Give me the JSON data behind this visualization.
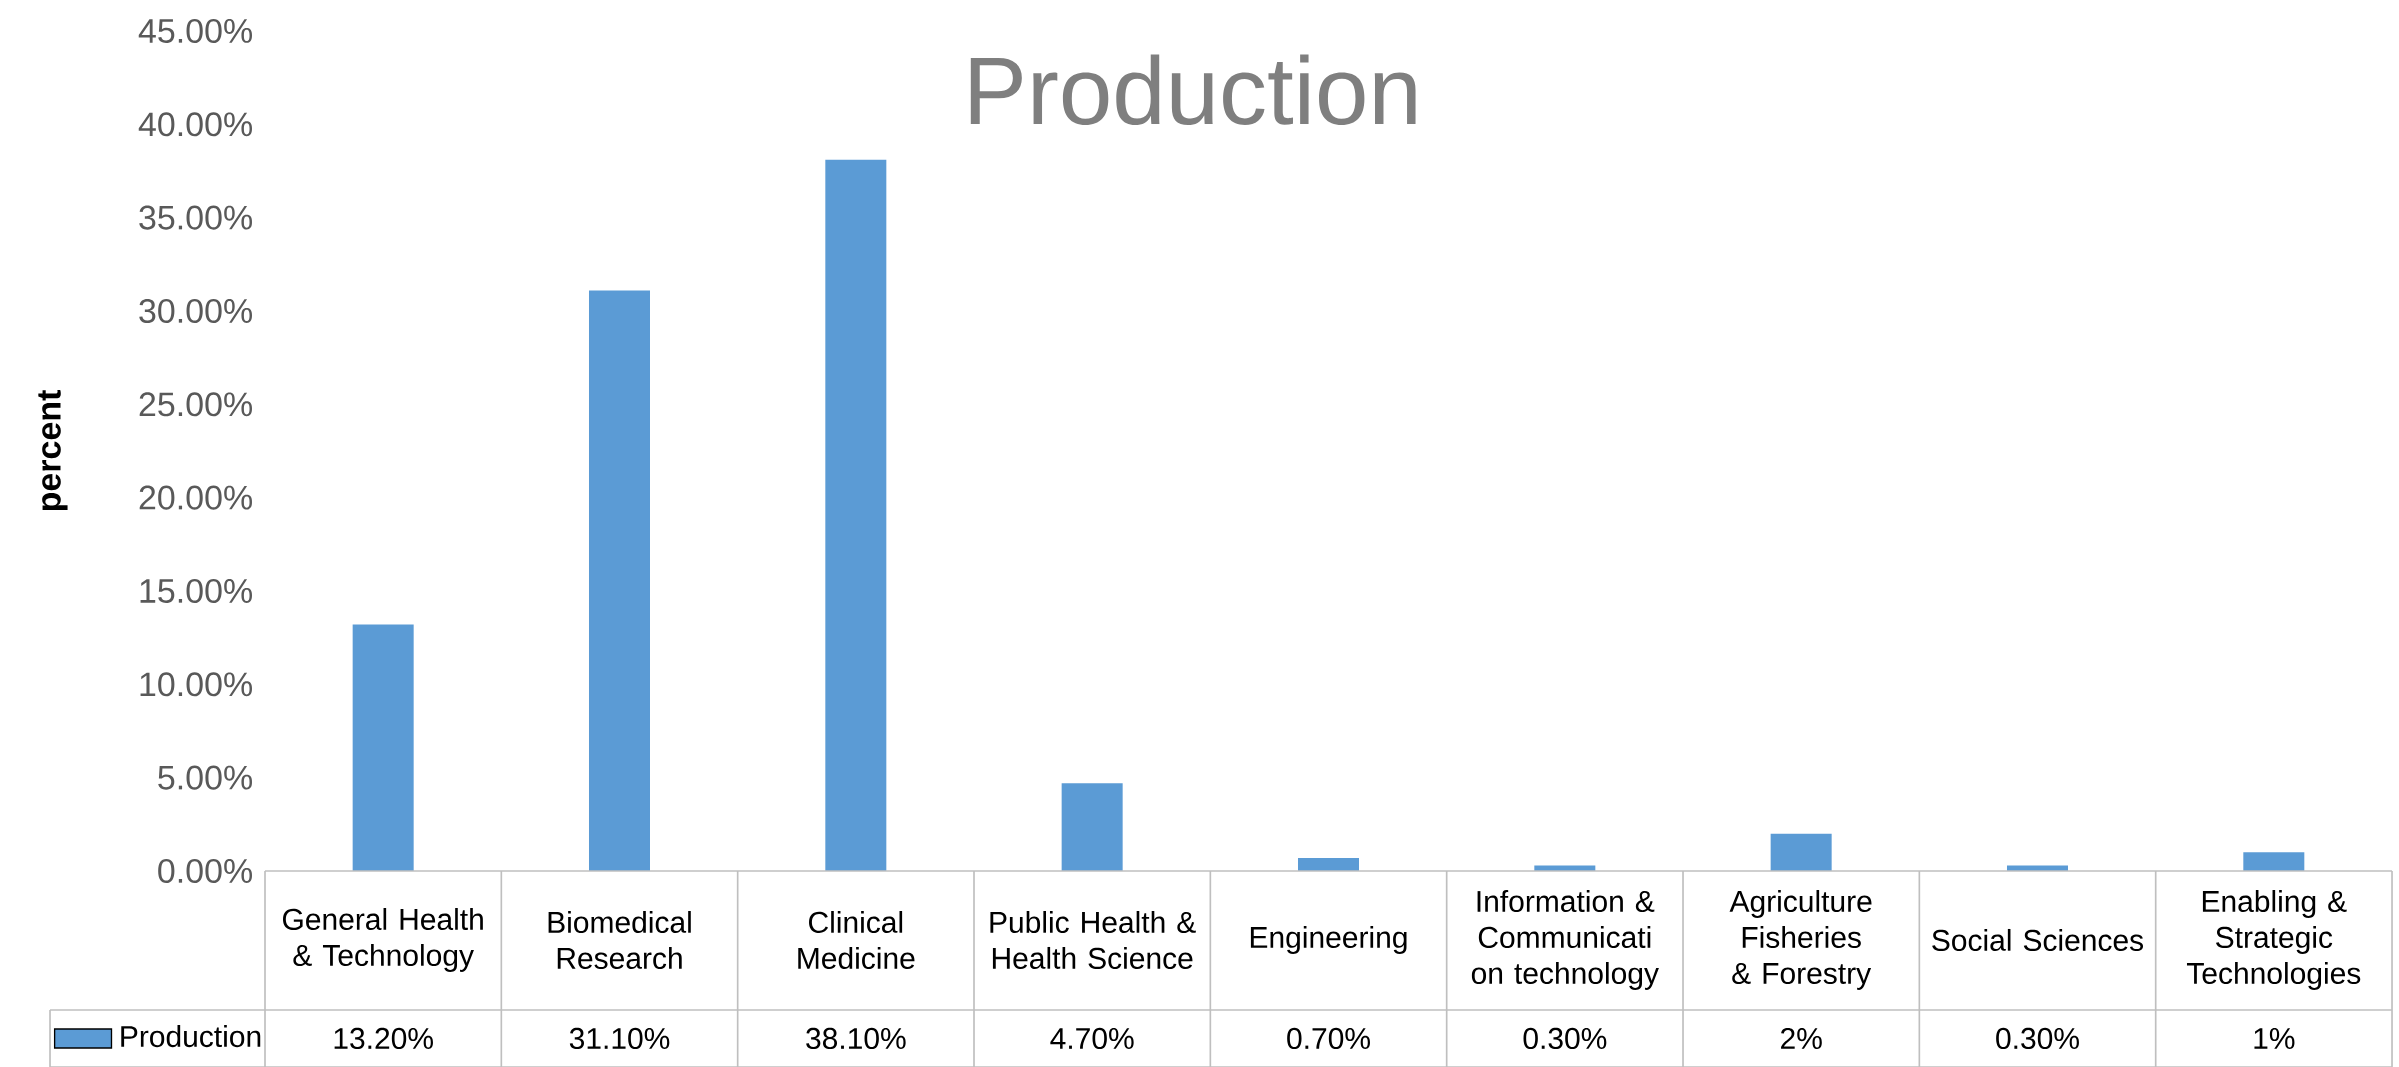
{
  "chart_data": {
    "type": "bar",
    "title": "Production",
    "ylabel": "percent",
    "categories": [
      "General Health & Technology",
      "Biomedical Research",
      "Clinical Medicine",
      "Public Health & Health Science",
      "Engineering",
      "Information & Communicati on technology",
      "Agriculture Fisheries & Forestry",
      "Social Sciences",
      "Enabling & Strategic Technologies"
    ],
    "series": [
      {
        "name": "Production",
        "color": "#5b9bd5",
        "values": [
          13.2,
          31.1,
          38.1,
          4.7,
          0.7,
          0.3,
          2,
          0.3,
          1
        ],
        "value_labels": [
          "13.20%",
          "31.10%",
          "38.10%",
          "4.70%",
          "0.70%",
          "0.30%",
          "2%",
          "0.30%",
          "1%"
        ]
      }
    ],
    "ylim": [
      0,
      45
    ],
    "yticks": [
      {
        "value": 0,
        "label": "0.00%"
      },
      {
        "value": 5,
        "label": "5.00%"
      },
      {
        "value": 10,
        "label": "10.00%"
      },
      {
        "value": 15,
        "label": "15.00%"
      },
      {
        "value": 20,
        "label": "20.00%"
      },
      {
        "value": 25,
        "label": "25.00%"
      },
      {
        "value": 30,
        "label": "30.00%"
      },
      {
        "value": 35,
        "label": "35.00%"
      },
      {
        "value": 40,
        "label": "40.00%"
      },
      {
        "value": 45,
        "label": "45.00%"
      }
    ],
    "legend": "bottom"
  }
}
